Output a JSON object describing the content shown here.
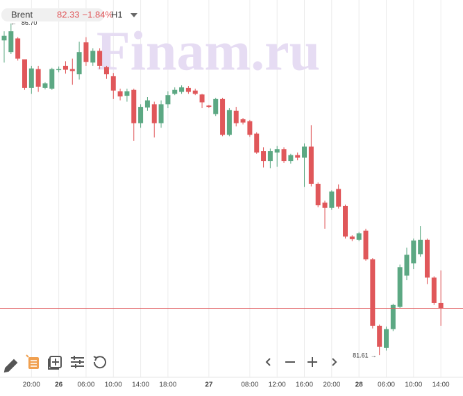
{
  "chart_data": {
    "type": "candlestick",
    "symbol": "Brent",
    "price": {
      "value": 82.33,
      "label": "82.33"
    },
    "change": "−1.84%",
    "interval": "H1",
    "watermark": "Finam.ru",
    "high_mark": {
      "value": 86.7,
      "label": "86.70",
      "index": 1
    },
    "low_mark": {
      "value": 81.61,
      "label": "81.61",
      "index": 55
    },
    "up_color": "#5ca883",
    "down_color": "#e0575a",
    "ylim": [
      81.26,
      87.06
    ],
    "categories": [
      null,
      null,
      null,
      null,
      "20:00",
      null,
      null,
      null,
      "26",
      null,
      null,
      null,
      "06:00",
      null,
      null,
      null,
      "10:00",
      null,
      null,
      null,
      "14:00",
      null,
      null,
      null,
      "18:00",
      null,
      null,
      null,
      null,
      null,
      "27",
      null,
      null,
      null,
      null,
      null,
      "08:00",
      null,
      null,
      null,
      "12:00",
      null,
      null,
      null,
      "16:00",
      null,
      null,
      null,
      "20:00",
      null,
      null,
      null,
      "28",
      null,
      null,
      null,
      "06:00",
      null,
      null,
      null,
      "10:00",
      null,
      null,
      null,
      "14:00"
    ],
    "open": [
      86.44,
      86.26,
      86.47,
      86.15,
      85.71,
      86.0,
      85.71,
      85.7,
      85.99,
      86.05,
      86.0,
      85.92,
      86.41,
      86.1,
      86.28,
      86.03,
      85.89,
      85.66,
      85.59,
      85.68,
      85.17,
      85.41,
      85.46,
      85.17,
      85.46,
      85.62,
      85.65,
      85.71,
      85.67,
      85.61,
      85.44,
      85.31,
      85.54,
      84.99,
      85.36,
      85.23,
      85.2,
      85.01,
      84.74,
      84.59,
      84.72,
      84.77,
      84.59,
      84.68,
      84.64,
      84.81,
      84.24,
      83.95,
      83.87,
      84.16,
      83.9,
      83.43,
      83.38,
      83.52,
      83.08,
      82.06,
      81.72,
      82.01,
      82.35,
      82.83,
      83.02,
      83.16,
      83.38,
      82.8,
      82.41
    ],
    "high": [
      86.58,
      86.7,
      86.49,
      86.15,
      86.05,
      86.05,
      85.8,
      86.02,
      86.04,
      86.12,
      86.16,
      86.42,
      86.49,
      86.32,
      86.32,
      86.05,
      85.94,
      85.7,
      85.7,
      85.7,
      85.46,
      85.57,
      85.5,
      85.52,
      85.66,
      85.72,
      85.75,
      85.74,
      85.7,
      85.62,
      85.45,
      85.56,
      85.56,
      85.4,
      85.42,
      85.25,
      85.22,
      85.03,
      84.8,
      84.78,
      84.82,
      84.8,
      84.7,
      84.72,
      84.86,
      85.14,
      84.26,
      83.98,
      84.14,
      84.23,
      83.92,
      83.45,
      83.5,
      83.55,
      83.1,
      82.08,
      82.05,
      82.4,
      83.0,
      83.26,
      83.4,
      83.59,
      83.4,
      82.82,
      82.91
    ],
    "low": [
      86.1,
      86.23,
      86.13,
      85.68,
      85.62,
      85.65,
      85.69,
      85.68,
      85.95,
      85.93,
      85.76,
      85.84,
      86.05,
      86.05,
      86.0,
      85.85,
      85.54,
      85.52,
      85.5,
      84.9,
      85.1,
      85.36,
      84.95,
      85.1,
      85.4,
      85.6,
      85.62,
      85.62,
      85.6,
      85.4,
      85.4,
      85.28,
      84.97,
      84.97,
      85.12,
      85.15,
      84.96,
      84.7,
      84.49,
      84.48,
      84.5,
      84.56,
      84.55,
      84.6,
      84.19,
      84.2,
      83.88,
      83.55,
      83.84,
      83.86,
      83.4,
      83.36,
      83.36,
      83.06,
      82.02,
      81.61,
      81.68,
      81.98,
      82.33,
      82.76,
      82.93,
      83.12,
      82.7,
      82.38,
      82.06
    ],
    "close": [
      86.51,
      86.58,
      86.16,
      85.71,
      86.01,
      85.73,
      85.78,
      86.0,
      86.0,
      85.99,
      85.97,
      86.26,
      86.11,
      86.28,
      86.05,
      85.92,
      85.67,
      85.58,
      85.66,
      85.17,
      85.42,
      85.52,
      85.17,
      85.46,
      85.6,
      85.68,
      85.72,
      85.65,
      85.62,
      85.49,
      85.42,
      85.54,
      84.99,
      85.37,
      85.17,
      85.18,
      84.99,
      84.72,
      84.59,
      84.74,
      84.77,
      84.59,
      84.68,
      84.64,
      84.81,
      84.24,
      83.91,
      83.87,
      84.12,
      83.89,
      83.43,
      83.39,
      83.48,
      83.08,
      82.06,
      81.74,
      82.01,
      82.38,
      82.96,
      83.15,
      83.37,
      83.38,
      82.8,
      82.41,
      82.33
    ]
  }
}
